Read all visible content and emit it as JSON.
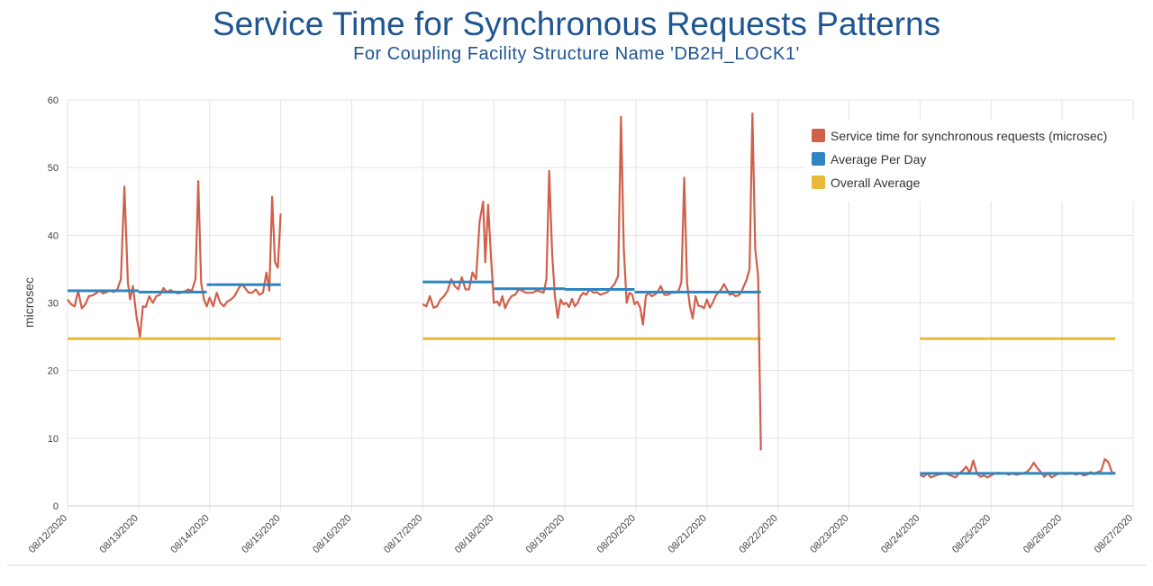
{
  "chart_data": {
    "type": "line",
    "title": "Service Time for Synchronous Requests Patterns",
    "subtitle": "For Coupling Facility Structure Name 'DB2H_LOCK1'",
    "xlabel": "",
    "ylabel": "microsec",
    "ylim": [
      0,
      60
    ],
    "yticks": [
      0,
      10,
      20,
      30,
      40,
      50,
      60
    ],
    "x_tick_labels": [
      "08/12/2020",
      "08/13/2020",
      "08/14/2020",
      "08/15/2020",
      "08/16/2020",
      "08/17/2020",
      "08/18/2020",
      "08/19/2020",
      "08/20/2020",
      "08/21/2020",
      "08/22/2020",
      "08/23/2020",
      "08/24/2020",
      "08/25/2020",
      "08/26/2020",
      "08/27/2020"
    ],
    "grid": true,
    "legend_position": "top-right",
    "colors": {
      "service": "#d0604a",
      "avg_day": "#2e86c1",
      "overall": "#e8b93a"
    },
    "series": [
      {
        "name": "Service time for synchronous requests (microsec)",
        "segments": [
          [
            [
              0.0,
              30.5
            ],
            [
              0.05,
              29.8
            ],
            [
              0.1,
              29.5
            ],
            [
              0.15,
              31.8
            ],
            [
              0.2,
              29.2
            ],
            [
              0.25,
              29.8
            ],
            [
              0.3,
              31.0
            ],
            [
              0.35,
              31.1
            ],
            [
              0.4,
              31.4
            ],
            [
              0.45,
              31.8
            ],
            [
              0.5,
              31.4
            ],
            [
              0.55,
              31.6
            ],
            [
              0.6,
              31.8
            ],
            [
              0.65,
              31.6
            ],
            [
              0.7,
              32.0
            ],
            [
              0.75,
              33.5
            ],
            [
              0.8,
              47.2
            ],
            [
              0.85,
              33.0
            ],
            [
              0.88,
              30.5
            ],
            [
              0.92,
              32.5
            ],
            [
              0.97,
              28.0
            ],
            [
              1.02,
              25.0
            ],
            [
              1.06,
              29.5
            ],
            [
              1.1,
              29.4
            ],
            [
              1.15,
              31.0
            ],
            [
              1.2,
              30.0
            ],
            [
              1.25,
              31.0
            ],
            [
              1.3,
              31.2
            ],
            [
              1.35,
              32.2
            ],
            [
              1.4,
              31.6
            ],
            [
              1.45,
              31.9
            ],
            [
              1.5,
              31.6
            ],
            [
              1.55,
              31.4
            ],
            [
              1.6,
              31.5
            ],
            [
              1.65,
              31.7
            ],
            [
              1.7,
              32.0
            ],
            [
              1.75,
              31.8
            ],
            [
              1.8,
              33.5
            ],
            [
              1.84,
              48.0
            ],
            [
              1.88,
              33.0
            ],
            [
              1.92,
              30.5
            ],
            [
              1.96,
              29.5
            ],
            [
              2.0,
              30.8
            ],
            [
              2.05,
              29.5
            ],
            [
              2.1,
              31.5
            ],
            [
              2.15,
              30.0
            ],
            [
              2.2,
              29.5
            ],
            [
              2.25,
              30.2
            ],
            [
              2.3,
              30.5
            ],
            [
              2.35,
              31.0
            ],
            [
              2.4,
              32.0
            ],
            [
              2.45,
              32.8
            ],
            [
              2.5,
              32.2
            ],
            [
              2.55,
              31.5
            ],
            [
              2.6,
              31.5
            ],
            [
              2.65,
              32.0
            ],
            [
              2.7,
              31.2
            ],
            [
              2.75,
              31.5
            ],
            [
              2.8,
              34.5
            ],
            [
              2.84,
              31.8
            ],
            [
              2.88,
              45.7
            ],
            [
              2.92,
              36.0
            ],
            [
              2.96,
              35.2
            ],
            [
              3.0,
              43.2
            ]
          ],
          [
            [
              5.0,
              29.8
            ],
            [
              5.05,
              29.5
            ],
            [
              5.1,
              31.0
            ],
            [
              5.15,
              29.3
            ],
            [
              5.2,
              29.5
            ],
            [
              5.25,
              30.5
            ],
            [
              5.3,
              31.0
            ],
            [
              5.35,
              31.8
            ],
            [
              5.4,
              33.5
            ],
            [
              5.45,
              32.5
            ],
            [
              5.5,
              32.0
            ],
            [
              5.55,
              33.8
            ],
            [
              5.6,
              32.0
            ],
            [
              5.65,
              32.0
            ],
            [
              5.7,
              34.5
            ],
            [
              5.75,
              33.5
            ],
            [
              5.8,
              42.0
            ],
            [
              5.85,
              45.0
            ],
            [
              5.88,
              36.0
            ],
            [
              5.92,
              44.5
            ],
            [
              5.96,
              37.0
            ],
            [
              6.0,
              30.0
            ],
            [
              6.05,
              30.2
            ],
            [
              6.08,
              29.6
            ],
            [
              6.12,
              31.0
            ],
            [
              6.16,
              29.2
            ],
            [
              6.2,
              30.2
            ],
            [
              6.25,
              31.0
            ],
            [
              6.3,
              31.2
            ],
            [
              6.35,
              32.0
            ],
            [
              6.4,
              31.8
            ],
            [
              6.45,
              31.5
            ],
            [
              6.5,
              31.5
            ],
            [
              6.55,
              31.5
            ],
            [
              6.6,
              31.8
            ],
            [
              6.65,
              31.7
            ],
            [
              6.7,
              31.5
            ],
            [
              6.74,
              33.5
            ],
            [
              6.78,
              49.5
            ],
            [
              6.82,
              37.5
            ],
            [
              6.86,
              31.0
            ],
            [
              6.9,
              27.8
            ],
            [
              6.94,
              30.5
            ],
            [
              6.98,
              29.8
            ],
            [
              7.02,
              30.0
            ],
            [
              7.06,
              29.4
            ],
            [
              7.1,
              30.6
            ],
            [
              7.14,
              29.5
            ],
            [
              7.18,
              30.0
            ],
            [
              7.22,
              31.0
            ],
            [
              7.26,
              31.5
            ],
            [
              7.3,
              31.2
            ],
            [
              7.35,
              32.0
            ],
            [
              7.4,
              31.5
            ],
            [
              7.45,
              31.6
            ],
            [
              7.5,
              31.2
            ],
            [
              7.55,
              31.4
            ],
            [
              7.6,
              31.6
            ],
            [
              7.65,
              32.2
            ],
            [
              7.7,
              32.8
            ],
            [
              7.75,
              34.0
            ],
            [
              7.79,
              57.5
            ],
            [
              7.83,
              38.0
            ],
            [
              7.87,
              30.0
            ],
            [
              7.91,
              31.5
            ],
            [
              7.95,
              31.2
            ],
            [
              7.98,
              29.8
            ],
            [
              8.02,
              30.2
            ],
            [
              8.06,
              29.3
            ],
            [
              8.1,
              26.8
            ],
            [
              8.14,
              31.0
            ],
            [
              8.18,
              31.5
            ],
            [
              8.22,
              31.0
            ],
            [
              8.26,
              31.2
            ],
            [
              8.3,
              31.5
            ],
            [
              8.35,
              32.5
            ],
            [
              8.4,
              31.2
            ],
            [
              8.45,
              31.2
            ],
            [
              8.5,
              31.5
            ],
            [
              8.55,
              31.5
            ],
            [
              8.6,
              31.8
            ],
            [
              8.64,
              33.0
            ],
            [
              8.68,
              48.5
            ],
            [
              8.72,
              33.0
            ],
            [
              8.76,
              29.5
            ],
            [
              8.8,
              27.7
            ],
            [
              8.84,
              31.0
            ],
            [
              8.88,
              29.6
            ],
            [
              8.92,
              29.5
            ],
            [
              8.96,
              29.2
            ],
            [
              9.0,
              30.5
            ],
            [
              9.04,
              29.3
            ],
            [
              9.08,
              30.0
            ],
            [
              9.12,
              31.0
            ],
            [
              9.16,
              31.5
            ],
            [
              9.2,
              32.0
            ],
            [
              9.24,
              32.8
            ],
            [
              9.28,
              32.0
            ],
            [
              9.32,
              31.2
            ],
            [
              9.36,
              31.4
            ],
            [
              9.4,
              31.0
            ],
            [
              9.44,
              31.1
            ],
            [
              9.48,
              31.5
            ],
            [
              9.52,
              32.5
            ],
            [
              9.56,
              33.5
            ],
            [
              9.6,
              35.0
            ],
            [
              9.64,
              58.0
            ],
            [
              9.68,
              38.0
            ],
            [
              9.72,
              34.0
            ],
            [
              9.76,
              8.2
            ]
          ],
          [
            [
              12.0,
              4.6
            ],
            [
              12.05,
              4.3
            ],
            [
              12.1,
              4.8
            ],
            [
              12.15,
              4.2
            ],
            [
              12.2,
              4.4
            ],
            [
              12.25,
              4.6
            ],
            [
              12.3,
              4.7
            ],
            [
              12.35,
              4.8
            ],
            [
              12.4,
              4.6
            ],
            [
              12.45,
              4.4
            ],
            [
              12.5,
              4.2
            ],
            [
              12.55,
              4.8
            ],
            [
              12.6,
              5.2
            ],
            [
              12.65,
              5.8
            ],
            [
              12.7,
              4.9
            ],
            [
              12.75,
              6.7
            ],
            [
              12.8,
              4.8
            ],
            [
              12.85,
              4.3
            ],
            [
              12.9,
              4.5
            ],
            [
              12.95,
              4.2
            ],
            [
              13.0,
              4.5
            ],
            [
              13.05,
              4.8
            ],
            [
              13.1,
              4.9
            ],
            [
              13.15,
              4.8
            ],
            [
              13.2,
              4.8
            ],
            [
              13.25,
              4.6
            ],
            [
              13.3,
              4.8
            ],
            [
              13.35,
              4.6
            ],
            [
              13.4,
              4.7
            ],
            [
              13.45,
              4.8
            ],
            [
              13.5,
              5.0
            ],
            [
              13.55,
              5.5
            ],
            [
              13.6,
              6.4
            ],
            [
              13.65,
              5.6
            ],
            [
              13.7,
              5.0
            ],
            [
              13.75,
              4.3
            ],
            [
              13.8,
              4.8
            ],
            [
              13.85,
              4.2
            ],
            [
              13.9,
              4.5
            ],
            [
              13.95,
              4.8
            ],
            [
              14.0,
              4.8
            ],
            [
              14.05,
              4.7
            ],
            [
              14.1,
              4.9
            ],
            [
              14.15,
              4.8
            ],
            [
              14.2,
              4.6
            ],
            [
              14.25,
              4.9
            ],
            [
              14.3,
              4.5
            ],
            [
              14.35,
              4.6
            ],
            [
              14.4,
              5.0
            ],
            [
              14.45,
              4.7
            ],
            [
              14.5,
              5.0
            ],
            [
              14.55,
              5.2
            ],
            [
              14.6,
              6.9
            ],
            [
              14.65,
              6.5
            ],
            [
              14.7,
              5.0
            ],
            [
              14.75,
              4.8
            ]
          ]
        ]
      },
      {
        "name": "Average Per Day",
        "segments": [
          [
            [
              0.0,
              31.8
            ],
            [
              1.0,
              31.8
            ]
          ],
          [
            [
              1.0,
              31.6
            ],
            [
              1.96,
              31.6
            ]
          ],
          [
            [
              1.96,
              32.7
            ],
            [
              3.0,
              32.7
            ]
          ],
          [
            [
              5.0,
              33.1
            ],
            [
              6.0,
              33.1
            ]
          ],
          [
            [
              6.0,
              32.1
            ],
            [
              7.0,
              32.1
            ]
          ],
          [
            [
              7.0,
              32.0
            ],
            [
              7.98,
              32.0
            ]
          ],
          [
            [
              7.98,
              31.6
            ],
            [
              8.68,
              31.6
            ]
          ],
          [
            [
              8.68,
              31.6
            ],
            [
              9.76,
              31.6
            ]
          ],
          [
            [
              12.0,
              4.8
            ],
            [
              14.75,
              4.8
            ]
          ]
        ]
      },
      {
        "name": "Overall Average",
        "segments": [
          [
            [
              0.0,
              24.7
            ],
            [
              3.0,
              24.7
            ]
          ],
          [
            [
              5.0,
              24.7
            ],
            [
              9.76,
              24.7
            ]
          ],
          [
            [
              12.0,
              24.7
            ],
            [
              14.75,
              24.7
            ]
          ]
        ]
      }
    ]
  }
}
